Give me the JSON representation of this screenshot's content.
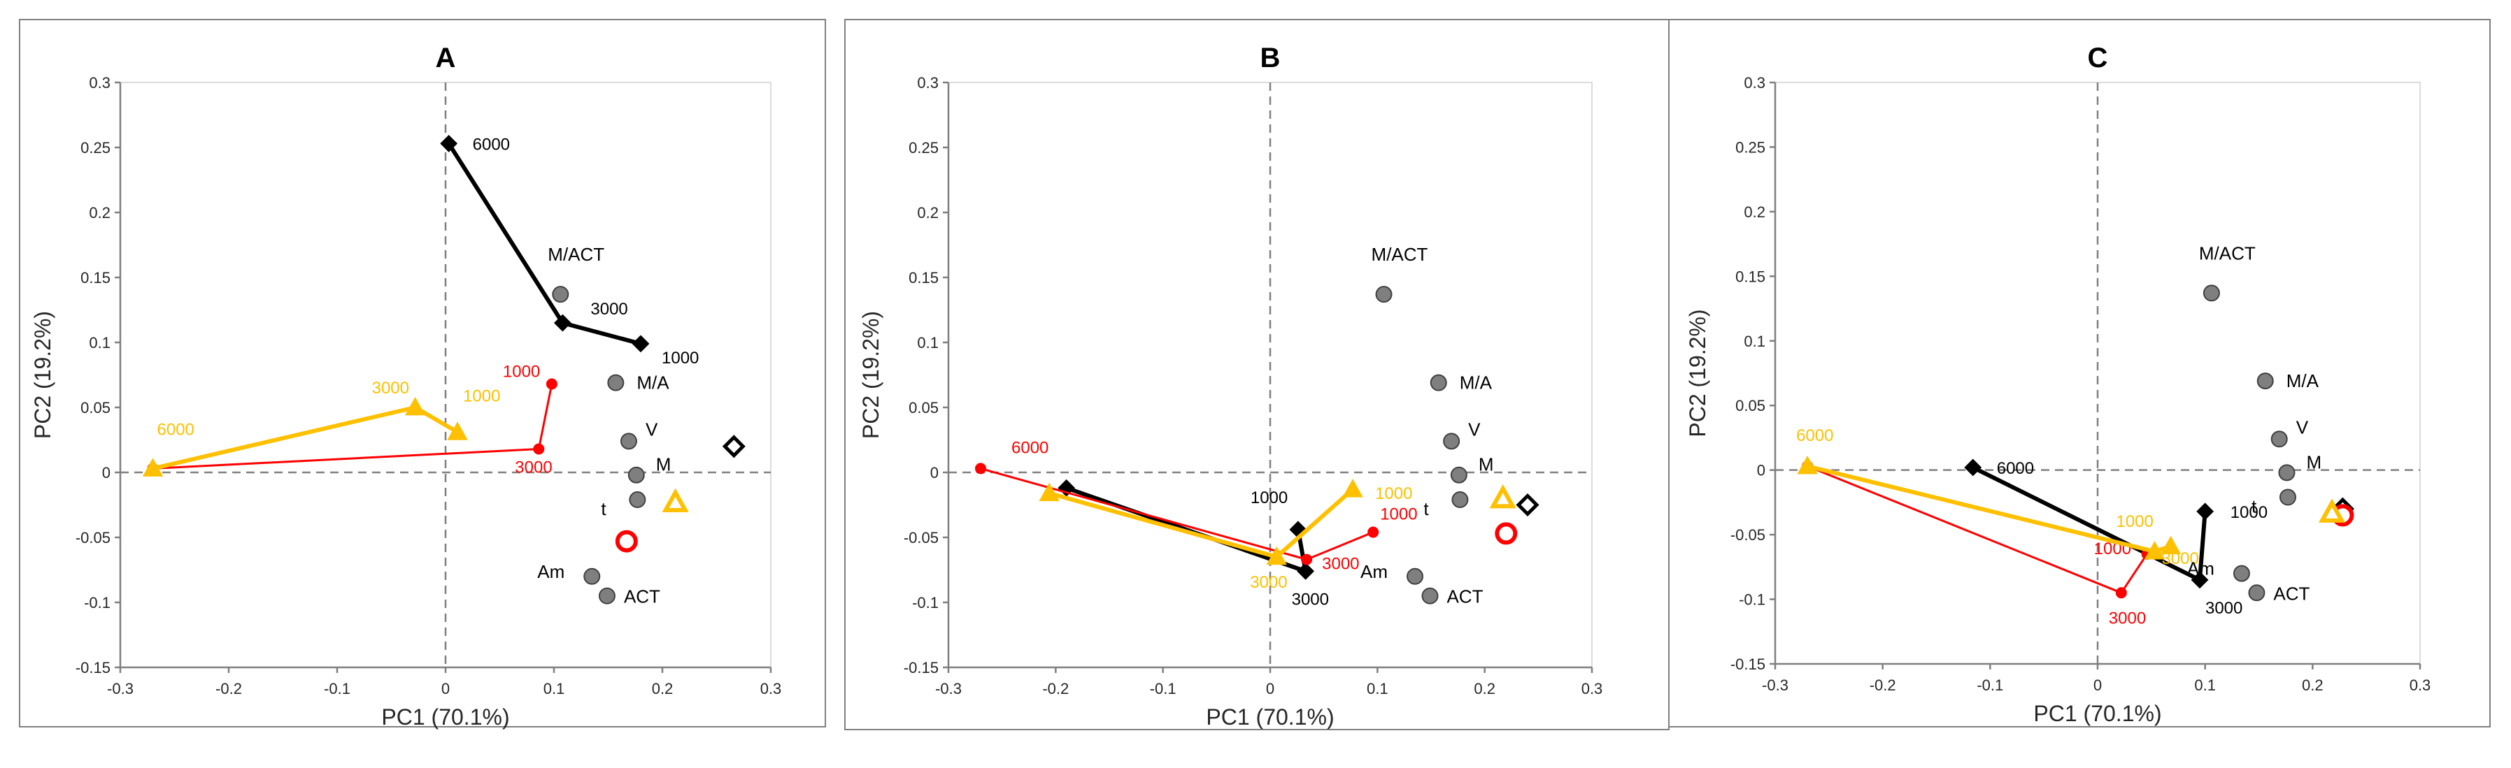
{
  "figure_colors": {
    "black": "#000000",
    "red": "#ff0000",
    "yellow": "#ffc000",
    "grey": "#7f7f7f",
    "text": "#262626"
  },
  "chart_data": [
    {
      "type": "scatter",
      "title": "A",
      "xlabel": "PC1 (70.1%)",
      "ylabel": "PC2 (19.2%)",
      "xlim": [
        -0.3,
        0.3
      ],
      "ylim": [
        -0.15,
        0.3
      ],
      "xticks": [
        "-0.3",
        "-0.2",
        "-0.1",
        "0",
        "0.1",
        "0.2",
        "0.3"
      ],
      "yticks": [
        "-0.15",
        "-0.1",
        "-0.05",
        "0",
        "0.05",
        "0.1",
        "0.15",
        "0.2",
        "0.25",
        "0.3"
      ],
      "variables": [
        {
          "name": "M/ACT",
          "x": 0.106,
          "y": 0.137
        },
        {
          "name": "M/A",
          "x": 0.157,
          "y": 0.069
        },
        {
          "name": "V",
          "x": 0.169,
          "y": 0.024
        },
        {
          "name": "M",
          "x": 0.176,
          "y": -0.002
        },
        {
          "name": "t",
          "x": 0.177,
          "y": -0.021
        },
        {
          "name": "Am",
          "x": 0.135,
          "y": -0.08
        },
        {
          "name": "ACT",
          "x": 0.149,
          "y": -0.095
        }
      ],
      "series": [
        {
          "name": "black",
          "color": "#000000",
          "marker": "diamond",
          "points": [
            {
              "x": 0.003,
              "y": 0.253,
              "label": "6000"
            },
            {
              "x": 0.108,
              "y": 0.115,
              "label": "3000"
            },
            {
              "x": 0.18,
              "y": 0.099,
              "label": "1000"
            }
          ],
          "endpoint": {
            "x": 0.266,
            "y": 0.02
          }
        },
        {
          "name": "red",
          "color": "#ff0000",
          "marker": "circle",
          "points": [
            {
              "x": -0.27,
              "y": 0.003,
              "label": ""
            },
            {
              "x": 0.086,
              "y": 0.018,
              "label": "3000"
            },
            {
              "x": 0.098,
              "y": 0.068,
              "label": "1000"
            }
          ],
          "endpoint": {
            "x": 0.167,
            "y": -0.053
          }
        },
        {
          "name": "yellow",
          "color": "#ffc000",
          "marker": "triangle",
          "points": [
            {
              "x": -0.27,
              "y": 0.003,
              "label": "6000"
            },
            {
              "x": -0.028,
              "y": 0.05,
              "label": "3000"
            },
            {
              "x": 0.011,
              "y": 0.031,
              "label": "1000"
            }
          ],
          "endpoint": {
            "x": 0.212,
            "y": -0.023
          }
        }
      ]
    },
    {
      "type": "scatter",
      "title": "B",
      "xlabel": "PC1 (70.1%)",
      "ylabel": "PC2 (19.2%)",
      "xlim": [
        -0.3,
        0.3
      ],
      "ylim": [
        -0.15,
        0.3
      ],
      "xticks": [
        "-0.3",
        "-0.2",
        "-0.1",
        "0",
        "0.1",
        "0.2",
        "0.3"
      ],
      "yticks": [
        "-0.15",
        "-0.1",
        "-0.05",
        "0",
        "0.05",
        "0.1",
        "0.15",
        "0.2",
        "0.25",
        "0.3"
      ],
      "variables": [
        {
          "name": "M/ACT",
          "x": 0.106,
          "y": 0.137
        },
        {
          "name": "M/A",
          "x": 0.157,
          "y": 0.069
        },
        {
          "name": "V",
          "x": 0.169,
          "y": 0.024
        },
        {
          "name": "M",
          "x": 0.176,
          "y": -0.002
        },
        {
          "name": "t",
          "x": 0.177,
          "y": -0.021
        },
        {
          "name": "Am",
          "x": 0.135,
          "y": -0.08
        },
        {
          "name": "ACT",
          "x": 0.149,
          "y": -0.095
        }
      ],
      "series": [
        {
          "name": "black",
          "color": "#000000",
          "marker": "diamond",
          "points": [
            {
              "x": -0.19,
              "y": -0.012,
              "label": ""
            },
            {
              "x": 0.033,
              "y": -0.076,
              "label": "3000"
            },
            {
              "x": 0.026,
              "y": -0.044,
              "label": "1000"
            }
          ],
          "endpoint": {
            "x": 0.24,
            "y": -0.025
          }
        },
        {
          "name": "red",
          "color": "#ff0000",
          "marker": "circle",
          "points": [
            {
              "x": -0.27,
              "y": 0.003,
              "label": "6000"
            },
            {
              "x": 0.034,
              "y": -0.067,
              "label": "3000"
            },
            {
              "x": 0.096,
              "y": -0.046,
              "label": "1000"
            }
          ],
          "endpoint": {
            "x": 0.22,
            "y": -0.047
          }
        },
        {
          "name": "yellow",
          "color": "#ffc000",
          "marker": "triangle",
          "points": [
            {
              "x": -0.206,
              "y": -0.016,
              "label": ""
            },
            {
              "x": 0.006,
              "y": -0.065,
              "label": "3000"
            },
            {
              "x": 0.077,
              "y": -0.013,
              "label": "1000"
            }
          ],
          "endpoint": {
            "x": 0.217,
            "y": -0.02
          }
        }
      ]
    },
    {
      "type": "scatter",
      "title": "C",
      "xlabel": "PC1 (70.1%)",
      "ylabel": "PC2 (19.2%)",
      "xlim": [
        -0.3,
        0.3
      ],
      "ylim": [
        -0.15,
        0.3
      ],
      "xticks": [
        "-0.3",
        "-0.2",
        "-0.1",
        "0",
        "0.1",
        "0.2",
        "0.3"
      ],
      "yticks": [
        "-0.15",
        "-0.1",
        "-0.05",
        "0",
        "0.05",
        "0.1",
        "0.15",
        "0.2",
        "0.25",
        "0.3"
      ],
      "variables": [
        {
          "name": "M/ACT",
          "x": 0.106,
          "y": 0.137
        },
        {
          "name": "M/A",
          "x": 0.156,
          "y": 0.069
        },
        {
          "name": "V",
          "x": 0.169,
          "y": 0.024
        },
        {
          "name": "M",
          "x": 0.176,
          "y": -0.002
        },
        {
          "name": "t",
          "x": 0.177,
          "y": -0.021
        },
        {
          "name": "Am",
          "x": 0.134,
          "y": -0.08
        },
        {
          "name": "ACT",
          "x": 0.148,
          "y": -0.095
        }
      ],
      "series": [
        {
          "name": "black",
          "color": "#000000",
          "marker": "diamond",
          "points": [
            {
              "x": -0.116,
              "y": 0.002,
              "label": "6000"
            },
            {
              "x": 0.095,
              "y": -0.085,
              "label": "3000"
            },
            {
              "x": 0.1,
              "y": -0.032,
              "label": "1000"
            }
          ],
          "endpoint": {
            "x": 0.228,
            "y": -0.03
          }
        },
        {
          "name": "red",
          "color": "#ff0000",
          "marker": "circle",
          "points": [
            {
              "x": -0.27,
              "y": 0.003,
              "label": ""
            },
            {
              "x": 0.022,
              "y": -0.095,
              "label": "3000"
            },
            {
              "x": 0.046,
              "y": -0.065,
              "label": "1000"
            }
          ],
          "endpoint": {
            "x": 0.228,
            "y": -0.035
          }
        },
        {
          "name": "yellow",
          "color": "#ffc000",
          "marker": "triangle",
          "points": [
            {
              "x": -0.27,
              "y": 0.003,
              "label": "6000"
            },
            {
              "x": 0.053,
              "y": -0.063,
              "label": "3000"
            },
            {
              "x": 0.068,
              "y": -0.059,
              "label": "1000"
            }
          ],
          "endpoint": {
            "x": 0.218,
            "y": -0.033
          }
        }
      ]
    }
  ]
}
